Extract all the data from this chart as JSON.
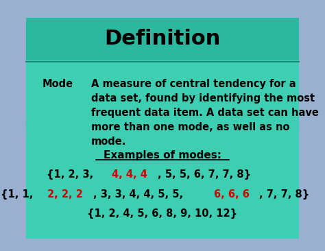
{
  "title": "Definition",
  "bg_outer": "#9ab0d0",
  "bg_card": "#3ecfb2",
  "bg_header": "#2ab89e",
  "circle_color": "#5bbfcc",
  "title_color": "#000000",
  "term": "Mode",
  "definition": "A measure of central tendency for a\ndata set, found by identifying the most\nfrequent data item. A data set can have\nmore than one mode, as well as no\nmode.",
  "examples_label": "Examples of modes:",
  "line1_parts": [
    {
      "text": "{1, 2, 3, ",
      "color": "#000000"
    },
    {
      "text": "4, 4, 4",
      "color": "#cc0000"
    },
    {
      "text": ", 5, 5, 6, 7, 7, 8}",
      "color": "#000000"
    }
  ],
  "line2_parts": [
    {
      "text": "{1, 1, ",
      "color": "#000000"
    },
    {
      "text": "2, 2, 2",
      "color": "#cc0000"
    },
    {
      "text": ", 3, 3, 4, 4, 5, 5, ",
      "color": "#000000"
    },
    {
      "text": "6, 6, 6",
      "color": "#cc0000"
    },
    {
      "text": ", 7, 7, 8}",
      "color": "#000000"
    }
  ],
  "line3": "{1, 2, 4, 5, 6, 8, 9, 10, 12}",
  "line3_color": "#000000",
  "divider_color": "#1a8a7a",
  "underline_color": "#000000"
}
